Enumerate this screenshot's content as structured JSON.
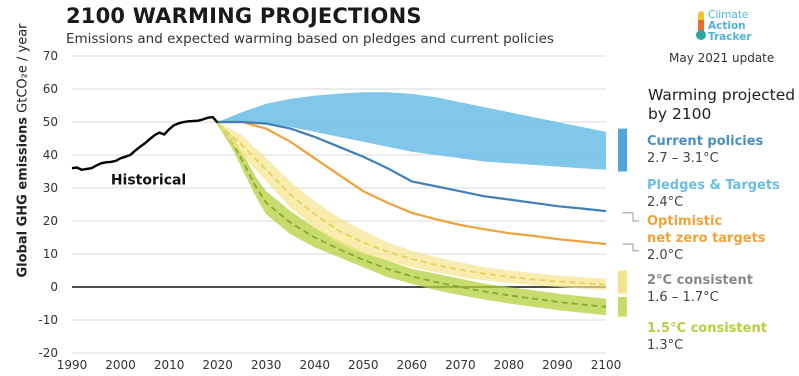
{
  "header": {
    "title": "2100 WARMING PROJECTIONS",
    "subtitle": "Emissions and expected warming based on pledges and current policies",
    "logo_lines": [
      "Climate",
      "Action",
      "Tracker"
    ],
    "update": "May 2021 update"
  },
  "legend": {
    "title_line1": "Warming projected",
    "title_line2": "by 2100",
    "items": [
      {
        "name": "Current policies",
        "value": "2.7 – 3.1°C",
        "color": "#4b8fc2"
      },
      {
        "name": "Pledges & Targets",
        "value": "2.4°C",
        "color": "#6bbde6"
      },
      {
        "name": "Optimistic",
        "name2": "net zero targets",
        "value": "2.0°C",
        "color": "#f0a23a"
      },
      {
        "name": "2°C consistent",
        "value": "1.6 – 1.7°C",
        "color": "#888888"
      },
      {
        "name": "1.5°C consistent",
        "value": "1.3°C",
        "color": "#b5cf3c"
      }
    ]
  },
  "chart_data": {
    "type": "area",
    "title": "2100 WARMING PROJECTIONS",
    "subtitle": "Emissions and expected warming based on pledges and current policies",
    "ylabel": "Global GHG emissions",
    "ylabel_unit": "GtCO₂e / year",
    "xlim": [
      1990,
      2100
    ],
    "ylim": [
      -20,
      70
    ],
    "xticks": [
      1990,
      2000,
      2010,
      2020,
      2030,
      2040,
      2050,
      2060,
      2070,
      2080,
      2090,
      2100
    ],
    "yticks": [
      -20,
      -10,
      0,
      10,
      20,
      30,
      40,
      50,
      60,
      70
    ],
    "grid": true,
    "annotation": "Historical",
    "series": [
      {
        "name": "Historical",
        "kind": "line",
        "color": "#000000",
        "x": [
          1990,
          1991,
          1992,
          1993,
          1994,
          1995,
          1996,
          1997,
          1998,
          1999,
          2000,
          2001,
          2002,
          2003,
          2004,
          2005,
          2006,
          2007,
          2008,
          2009,
          2010,
          2011,
          2012,
          2013,
          2014,
          2015,
          2016,
          2017,
          2018,
          2019,
          2020
        ],
        "y": [
          36,
          36.2,
          35.5,
          35.8,
          36,
          36.8,
          37.5,
          37.8,
          37.9,
          38.2,
          39,
          39.5,
          40,
          41.3,
          42.5,
          43.5,
          44.8,
          46,
          46.8,
          46.2,
          47.8,
          49,
          49.6,
          50,
          50.2,
          50.3,
          50.4,
          50.8,
          51.3,
          51.5,
          49.8
        ]
      },
      {
        "name": "Current policies",
        "kind": "band",
        "color": "#6bbde6",
        "x": [
          2020,
          2025,
          2030,
          2035,
          2040,
          2045,
          2050,
          2055,
          2060,
          2065,
          2070,
          2075,
          2080,
          2085,
          2090,
          2095,
          2100
        ],
        "upper": [
          50,
          53,
          55.5,
          57,
          58,
          58.6,
          59,
          59,
          58.5,
          57.5,
          56,
          54.5,
          53,
          51.5,
          50,
          48.5,
          47
        ],
        "lower": [
          49.5,
          50,
          49.5,
          48.5,
          47,
          45.5,
          44,
          42.5,
          41,
          40,
          39,
          38,
          37.5,
          37,
          36.5,
          36,
          35.5
        ]
      },
      {
        "name": "Pledges & Targets",
        "kind": "line",
        "color": "#3d7fb6",
        "x": [
          2020,
          2025,
          2030,
          2035,
          2040,
          2045,
          2050,
          2055,
          2060,
          2065,
          2070,
          2075,
          2080,
          2085,
          2090,
          2095,
          2100
        ],
        "y": [
          50,
          50,
          49.5,
          48,
          45.5,
          42.5,
          39.5,
          36,
          32,
          30.5,
          29,
          27.5,
          26.5,
          25.5,
          24.5,
          23.8,
          23
        ]
      },
      {
        "name": "Optimistic net zero targets",
        "kind": "line",
        "color": "#f0a23a",
        "x": [
          2020,
          2025,
          2030,
          2035,
          2040,
          2045,
          2050,
          2055,
          2060,
          2065,
          2070,
          2075,
          2080,
          2085,
          2090,
          2095,
          2100
        ],
        "y": [
          50,
          50,
          48,
          44,
          39,
          34,
          29,
          25.5,
          22.5,
          20.5,
          18.8,
          17.5,
          16.3,
          15.5,
          14.5,
          13.8,
          13
        ]
      },
      {
        "name": "2°C consistent",
        "kind": "band",
        "color": "#f5e48c",
        "x": [
          2020,
          2025,
          2030,
          2035,
          2040,
          2045,
          2050,
          2055,
          2060,
          2065,
          2070,
          2075,
          2080,
          2085,
          2090,
          2095,
          2100
        ],
        "upper": [
          50,
          46,
          39,
          32,
          26,
          21,
          17,
          13.5,
          11,
          9,
          7.5,
          6,
          5,
          4.2,
          3.5,
          3,
          2.5
        ],
        "lower": [
          49,
          40,
          32,
          24,
          18,
          13,
          10,
          8,
          6,
          4.5,
          3,
          2,
          1.2,
          0.5,
          0,
          -0.5,
          -1
        ],
        "mid": [
          49.5,
          43,
          35.5,
          28,
          22,
          17,
          13.5,
          10.7,
          8.5,
          6.7,
          5.2,
          4,
          3.1,
          2.3,
          1.7,
          1.2,
          0.7
        ]
      },
      {
        "name": "1.5°C consistent",
        "kind": "band",
        "color": "#b5cf3c",
        "x": [
          2020,
          2023,
          2025,
          2028,
          2030,
          2035,
          2040,
          2045,
          2050,
          2055,
          2060,
          2065,
          2070,
          2075,
          2080,
          2085,
          2090,
          2095,
          2100
        ],
        "upper": [
          50,
          46,
          41,
          33,
          29,
          23,
          18,
          14,
          10.5,
          8,
          5.5,
          4,
          2.5,
          1,
          0,
          -1,
          -2,
          -2.8,
          -3.5
        ],
        "lower": [
          49,
          42,
          36,
          27,
          22,
          16,
          12,
          9,
          6,
          3,
          1,
          -1,
          -2.5,
          -3.8,
          -5,
          -6,
          -7,
          -7.8,
          -8.5
        ],
        "mid": [
          49.5,
          44,
          38.5,
          30,
          25.5,
          19.5,
          15,
          11.5,
          8.2,
          5.5,
          3.2,
          1.5,
          0,
          -1.4,
          -2.5,
          -3.5,
          -4.5,
          -5.3,
          -6
        ]
      }
    ],
    "end_markers": [
      {
        "name": "Current policies",
        "color": "#4fa6d8",
        "lower": 35,
        "upper": 48
      },
      {
        "name": "2°C consistent",
        "color": "#f5e48c",
        "lower": -2,
        "upper": 5
      },
      {
        "name": "1.5°C consistent",
        "color": "#c9dc6a",
        "lower": -9,
        "upper": -3
      }
    ]
  }
}
